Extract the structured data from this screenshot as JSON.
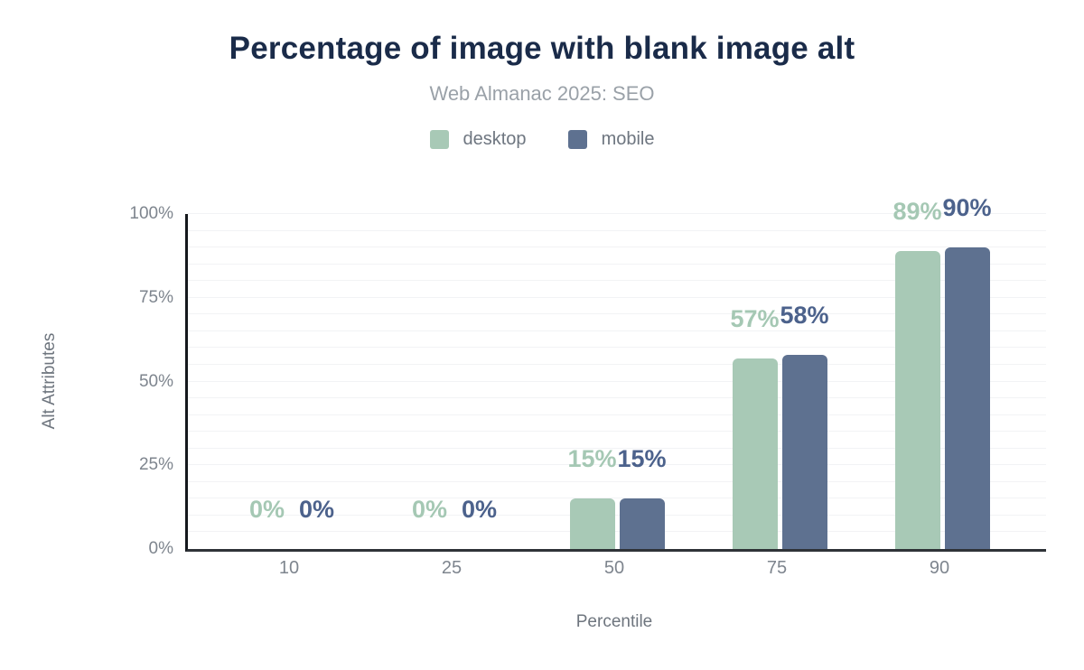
{
  "chart_data": {
    "type": "bar",
    "title": "Percentage of image with blank image alt",
    "subtitle": "Web Almanac 2025: SEO",
    "xlabel": "Percentile",
    "ylabel": "Alt Attributes",
    "categories": [
      "10",
      "25",
      "50",
      "75",
      "90"
    ],
    "series": [
      {
        "name": "desktop",
        "color": "#a8c9b6",
        "label_color": "#a5c8b4",
        "values": [
          0,
          0,
          15,
          57,
          89
        ],
        "labels": [
          "0%",
          "0%",
          "15%",
          "57%",
          "89%"
        ]
      },
      {
        "name": "mobile",
        "color": "#5e7190",
        "label_color": "#4c628c",
        "values": [
          0,
          0,
          15,
          58,
          90
        ],
        "labels": [
          "0%",
          "0%",
          "15%",
          "58%",
          "90%"
        ]
      }
    ],
    "ylim": [
      0,
      100
    ],
    "yticks": [
      {
        "value": 0,
        "label": "0%"
      },
      {
        "value": 25,
        "label": "25%"
      },
      {
        "value": 50,
        "label": "50%"
      },
      {
        "value": 75,
        "label": "75%"
      },
      {
        "value": 100,
        "label": "100%"
      }
    ],
    "grid": {
      "horizontal": true,
      "step": 5,
      "color": "#f2f3f5"
    },
    "legend_position": "top-center",
    "colors": {
      "title": "#1a2b49",
      "subtitle": "#9aa1a8",
      "axis_text": "#7e858e"
    }
  }
}
